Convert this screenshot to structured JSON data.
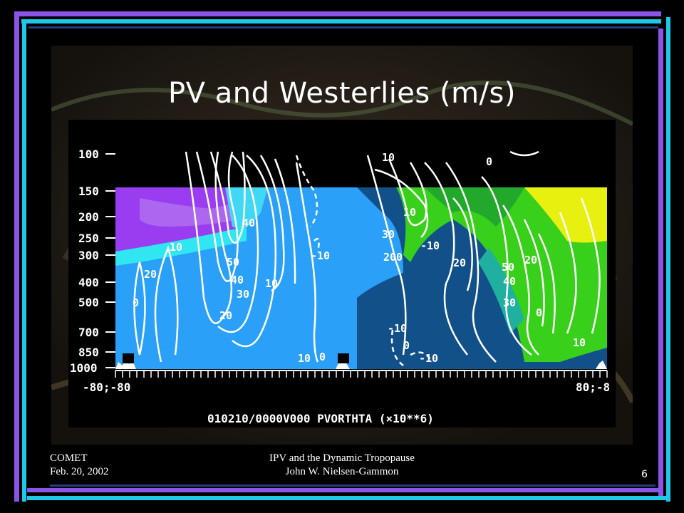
{
  "slide": {
    "title": "PV and Westerlies (m/s)",
    "footer_left": [
      "COMET",
      "Feb. 20, 2002"
    ],
    "footer_center": [
      "IPV and the Dynamic Tropopause",
      "John W. Nielsen-Gammon"
    ],
    "page_number": "6"
  },
  "plot": {
    "pressure_ticks": [
      "100",
      "150",
      "200",
      "250",
      "300",
      "400",
      "500",
      "700",
      "850",
      "1000"
    ],
    "x_tick_left": "-80;-80",
    "x_tick_right": "80;-8",
    "caption": "010210/0000V000    PVORTHTA (×10**6)",
    "contour_labels": [
      "10",
      "20",
      "40",
      "50",
      "40",
      "30",
      "20",
      "10",
      "0",
      "10",
      "10",
      "-10",
      "0",
      "10",
      "30",
      "200",
      "-10",
      "-10",
      "0",
      "-10",
      "20",
      "50",
      "40",
      "30",
      "0",
      "20",
      "10",
      "0"
    ]
  },
  "colors": {
    "purple": "#9a3cf0",
    "light_blue": "#2aa0f8",
    "dark_blue": "#12508a",
    "cyan": "#30e6f0",
    "green": "#38d01a",
    "yellow": "#e8f010"
  }
}
